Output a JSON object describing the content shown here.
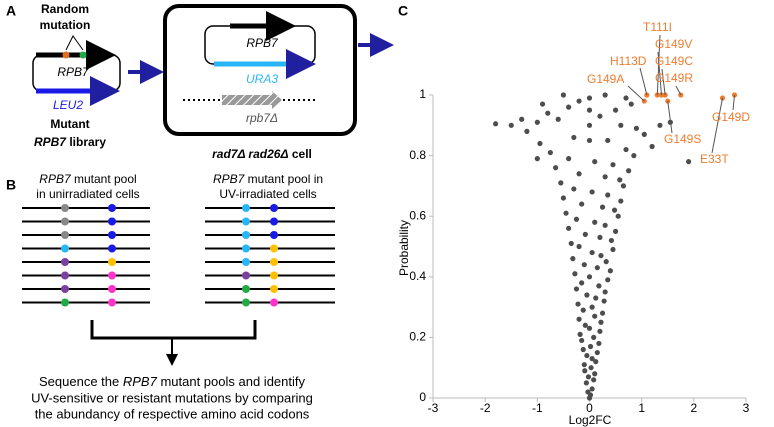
{
  "panel_a": {
    "letter": "A",
    "random": "Random",
    "mutation": "mutation",
    "plasmid_gene": "RPB7",
    "marker": "LEU2",
    "mutant": "Mutant",
    "library_gene": "RPB7",
    "library_word": "library",
    "cell_gene": "RPB7",
    "cell_marker": "URA3",
    "deletion": "rpb7Δ",
    "cell_label": "rad7Δ rad26Δ",
    "cell_word": "cell"
  },
  "panel_b": {
    "letter": "B",
    "left_gene": "RPB7",
    "left_line1": "mutant pool",
    "left_line2": "in unirradiated cells",
    "right_gene": "RPB7",
    "right_line1": "mutant pool in",
    "right_line2": "UV-irradiated cells",
    "bottom_line1_a": "Sequence the",
    "bottom_line1_gene": "RPB7",
    "bottom_line1_b": "mutant pools and identify",
    "bottom_line2": "UV-sensitive or resistant mutations by comparing",
    "bottom_line3": "the abundancy of respective amino acid codons"
  },
  "chart_data": {
    "type": "scatter",
    "panel_letter": "C",
    "xlabel": "Log2FC",
    "ylabel": "Probability",
    "xlim": [
      -3,
      3
    ],
    "ylim": [
      0,
      1
    ],
    "xticks": [
      -3,
      -2,
      -1,
      0,
      1,
      2,
      3
    ],
    "yticks": [
      0,
      0.2,
      0.4,
      0.6,
      0.8,
      1
    ],
    "series": [
      {
        "color": "#4d4d4d",
        "x": [
          0.0,
          0.02,
          -0.03,
          0.05,
          -0.06,
          0.08,
          -0.02,
          0.1,
          -0.09,
          0.03,
          -0.1,
          0.12,
          0.05,
          -0.05,
          0.15,
          -0.12,
          0.02,
          0.18,
          -0.15,
          0.08,
          -0.18,
          0.2,
          0.0,
          -0.08,
          0.22,
          -0.2,
          0.1,
          0.25,
          -0.12,
          0.05,
          -0.22,
          0.28,
          0.12,
          -0.05,
          0.3,
          -0.25,
          0.18,
          -0.15,
          0.35,
          0.0,
          -0.28,
          0.4,
          0.15,
          -0.1,
          0.32,
          -0.32,
          0.22,
          0.05,
          0.45,
          -0.2,
          -0.35,
          0.42,
          0.2,
          -0.08,
          0.5,
          -0.4,
          0.3,
          0.1,
          -0.25,
          0.55,
          -0.45,
          0.48,
          0.25,
          -0.15,
          0.6,
          -0.5,
          0.35,
          0.05,
          -0.3,
          0.65,
          -0.55,
          0.58,
          0.3,
          -0.2,
          0.75,
          -0.65,
          0.45,
          0.1,
          -0.4,
          0.85,
          -0.75,
          0.7,
          1.2,
          -0.95,
          0.35,
          -0.3,
          1.05,
          -1.2,
          0.9,
          -1.5,
          -1.8,
          1.35,
          -1.0,
          0.6,
          1.55,
          -0.6,
          0.2,
          -1.3,
          -0.8,
          0.5,
          -0.4,
          0.8,
          -0.2,
          0.0,
          0.3,
          -0.5,
          0.7,
          -0.9,
          1.9,
          -1.0,
          0.0,
          0.0,
          0.0
        ],
        "values": [
          0.0,
          0.01,
          0.02,
          0.03,
          0.05,
          0.06,
          0.07,
          0.08,
          0.09,
          0.1,
          0.11,
          0.12,
          0.13,
          0.14,
          0.15,
          0.16,
          0.17,
          0.18,
          0.19,
          0.2,
          0.21,
          0.22,
          0.23,
          0.24,
          0.25,
          0.26,
          0.27,
          0.28,
          0.29,
          0.3,
          0.31,
          0.32,
          0.33,
          0.34,
          0.35,
          0.36,
          0.37,
          0.38,
          0.39,
          0.4,
          0.41,
          0.42,
          0.43,
          0.44,
          0.45,
          0.46,
          0.47,
          0.48,
          0.49,
          0.5,
          0.51,
          0.52,
          0.53,
          0.54,
          0.55,
          0.56,
          0.57,
          0.58,
          0.59,
          0.6,
          0.61,
          0.62,
          0.63,
          0.64,
          0.65,
          0.66,
          0.67,
          0.68,
          0.69,
          0.7,
          0.71,
          0.72,
          0.73,
          0.74,
          0.75,
          0.76,
          0.77,
          0.78,
          0.79,
          0.8,
          0.81,
          0.82,
          0.83,
          0.84,
          0.85,
          0.86,
          0.87,
          0.88,
          0.89,
          0.9,
          0.905,
          0.9,
          0.91,
          0.9,
          0.91,
          0.92,
          0.93,
          0.92,
          0.94,
          0.95,
          0.96,
          0.97,
          0.98,
          0.99,
          1.0,
          1.0,
          0.99,
          0.97,
          0.78,
          0.79,
          0.95,
          0.9,
          0.85
        ]
      },
      {
        "color": "#ed7d31",
        "labels": [
          "G149A",
          "H113D",
          "T111I",
          "G149V",
          "G149C",
          "G149R",
          "G149S",
          "E33T",
          "G149D"
        ],
        "x": [
          1.05,
          1.1,
          1.3,
          1.38,
          1.45,
          1.75,
          1.5,
          2.55,
          2.78
        ],
        "values": [
          0.98,
          1.0,
          1.0,
          1.0,
          1.0,
          1.0,
          0.98,
          0.99,
          1.0
        ]
      }
    ]
  }
}
